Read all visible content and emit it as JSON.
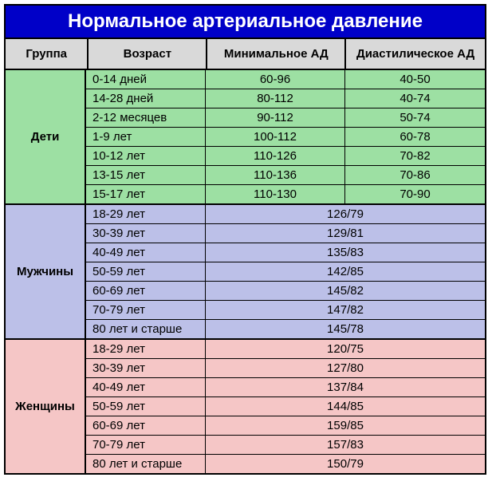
{
  "title": "Нормальное артериальное давление",
  "headers": {
    "group": "Группа",
    "age": "Возраст",
    "min": "Минимальное АД",
    "dia": "Диастилическое АД"
  },
  "colors": {
    "title_bg": "#0000c8",
    "title_text": "#ffffff",
    "header_bg": "#d9d9d9",
    "children_bg": "#9de0a3",
    "men_bg": "#bcc0e8",
    "women_bg": "#f5c6c6",
    "border": "#000000"
  },
  "groups": [
    {
      "label": "Дети",
      "color_key": "children_bg",
      "combined": false,
      "rows": [
        {
          "age": "0-14 дней",
          "min": "60-96",
          "dia": "40-50"
        },
        {
          "age": "14-28 дней",
          "min": "80-112",
          "dia": "40-74"
        },
        {
          "age": "2-12 месяцев",
          "min": "90-112",
          "dia": "50-74"
        },
        {
          "age": "1-9 лет",
          "min": "100-112",
          "dia": "60-78"
        },
        {
          "age": "10-12 лет",
          "min": "110-126",
          "dia": "70-82"
        },
        {
          "age": "13-15 лет",
          "min": "110-136",
          "dia": "70-86"
        },
        {
          "age": "15-17 лет",
          "min": "110-130",
          "dia": "70-90"
        }
      ]
    },
    {
      "label": "Мужчины",
      "color_key": "men_bg",
      "combined": true,
      "rows": [
        {
          "age": "18-29 лет",
          "value": "126/79"
        },
        {
          "age": "30-39 лет",
          "value": "129/81"
        },
        {
          "age": "40-49 лет",
          "value": "135/83"
        },
        {
          "age": "50-59 лет",
          "value": "142/85"
        },
        {
          "age": "60-69 лет",
          "value": "145/82"
        },
        {
          "age": "70-79 лет",
          "value": "147/82"
        },
        {
          "age": "80 лет и старше",
          "value": "145/78"
        }
      ]
    },
    {
      "label": "Женщины",
      "color_key": "women_bg",
      "combined": true,
      "rows": [
        {
          "age": "18-29 лет",
          "value": "120/75"
        },
        {
          "age": "30-39 лет",
          "value": "127/80"
        },
        {
          "age": "40-49 лет",
          "value": "137/84"
        },
        {
          "age": "50-59 лет",
          "value": "144/85"
        },
        {
          "age": "60-69 лет",
          "value": "159/85"
        },
        {
          "age": "70-79 лет",
          "value": "157/83"
        },
        {
          "age": "80 лет и старше",
          "value": "150/79"
        }
      ]
    }
  ]
}
